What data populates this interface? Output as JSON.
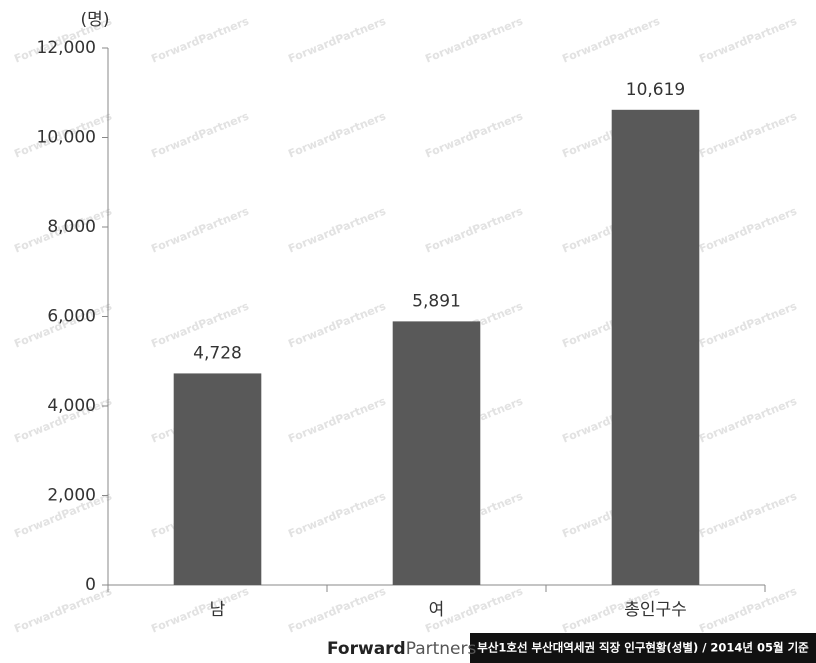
{
  "chart_data": {
    "type": "bar",
    "y_label": "(명)",
    "categories": [
      "남",
      "여",
      "총인구수"
    ],
    "values": [
      4728,
      5891,
      10619
    ],
    "value_labels": [
      "4,728",
      "5,891",
      "10,619"
    ],
    "color": "#595959",
    "ylim": [
      0,
      12000
    ],
    "yticks": [
      0,
      {
        "value": 2000,
        "label": "2,000"
      },
      {
        "value": 4000,
        "label": "4,000"
      },
      {
        "value": 6000,
        "label": "6,000"
      },
      {
        "value": 8000,
        "label": "8,000"
      },
      {
        "value": 10000,
        "label": "10,000"
      },
      {
        "value": 12000,
        "label": "12,000"
      }
    ],
    "grid": false
  },
  "watermark": "ForwardPartners",
  "footer": {
    "brand": [
      "Forward",
      "Partners"
    ],
    "caption": "부산1호선 부산대역세권 직장 인구현황(성별) / 2014년 05월 기준"
  }
}
